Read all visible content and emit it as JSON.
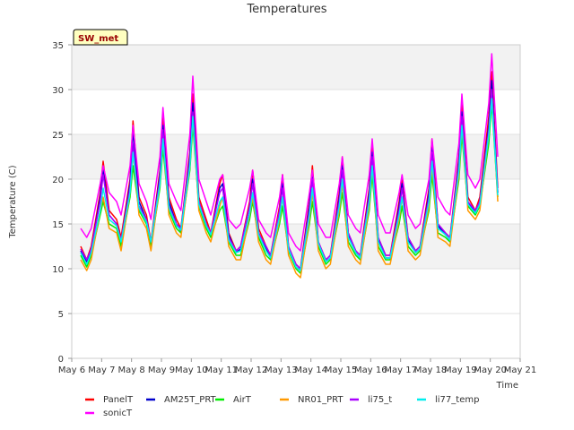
{
  "chart_data": {
    "type": "line",
    "title": "Temperatures",
    "xlabel": "Time",
    "ylabel": "Temperature (C)",
    "site_label": "SW_met",
    "xlim": [
      6,
      21
    ],
    "ylim": [
      0,
      35
    ],
    "x_ticks": [
      {
        "value": 6,
        "label": "May 6"
      },
      {
        "value": 7,
        "label": "May 7"
      },
      {
        "value": 8,
        "label": "May 8"
      },
      {
        "value": 9,
        "label": "May 9"
      },
      {
        "value": 10,
        "label": "May 10"
      },
      {
        "value": 11,
        "label": "May 11"
      },
      {
        "value": 12,
        "label": "May 12"
      },
      {
        "value": 13,
        "label": "May 13"
      },
      {
        "value": 14,
        "label": "May 14"
      },
      {
        "value": 15,
        "label": "May 15"
      },
      {
        "value": 16,
        "label": "May 16"
      },
      {
        "value": 17,
        "label": "May 17"
      },
      {
        "value": 18,
        "label": "May 18"
      },
      {
        "value": 19,
        "label": "May 19"
      },
      {
        "value": 20,
        "label": "May 20"
      },
      {
        "value": 21,
        "label": "May 21"
      }
    ],
    "y_ticks": [
      0,
      5,
      10,
      15,
      20,
      25,
      30,
      35
    ],
    "grid": true,
    "legend_position": "bottom",
    "series": [
      {
        "name": "PanelT",
        "color": "#ff0000",
        "x": [
          6.3,
          6.5,
          6.65,
          6.95,
          7.05,
          7.25,
          7.5,
          7.65,
          7.95,
          8.05,
          8.25,
          8.5,
          8.65,
          8.95,
          9.05,
          9.25,
          9.5,
          9.65,
          9.95,
          10.05,
          10.25,
          10.5,
          10.65,
          10.95,
          11.05,
          11.25,
          11.5,
          11.65,
          11.95,
          12.05,
          12.25,
          12.5,
          12.65,
          12.95,
          13.05,
          13.25,
          13.5,
          13.65,
          13.95,
          14.05,
          14.25,
          14.5,
          14.65,
          14.95,
          15.05,
          15.25,
          15.5,
          15.65,
          15.95,
          16.05,
          16.25,
          16.5,
          16.65,
          16.95,
          17.05,
          17.25,
          17.5,
          17.65,
          17.95,
          18.05,
          18.25,
          18.5,
          18.65,
          18.95,
          19.05,
          19.25,
          19.5,
          19.65,
          19.95,
          20.05,
          20.25
        ],
        "y": [
          12.5,
          11.0,
          12.5,
          18.5,
          22.0,
          16.5,
          15.5,
          13.5,
          20.0,
          26.5,
          18.0,
          16.0,
          13.0,
          21.0,
          27.0,
          18.0,
          15.5,
          14.5,
          23.0,
          29.5,
          18.0,
          15.5,
          14.0,
          19.5,
          20.5,
          14.0,
          12.0,
          12.5,
          17.5,
          21.0,
          14.5,
          12.5,
          11.5,
          17.0,
          20.5,
          12.5,
          10.5,
          10.0,
          17.5,
          21.5,
          13.0,
          11.0,
          11.5,
          18.5,
          22.5,
          14.0,
          12.0,
          11.5,
          19.0,
          24.0,
          13.5,
          11.5,
          11.5,
          17.5,
          20.0,
          13.5,
          12.0,
          12.5,
          19.0,
          24.5,
          15.0,
          14.0,
          13.5,
          22.5,
          28.5,
          18.0,
          16.5,
          18.0,
          27.0,
          32.0,
          19.0
        ]
      },
      {
        "name": "AM25T_PRT",
        "color": "#0000cc",
        "x": [
          6.3,
          6.5,
          6.65,
          6.95,
          7.05,
          7.25,
          7.5,
          7.65,
          7.95,
          8.05,
          8.25,
          8.5,
          8.65,
          8.95,
          9.05,
          9.25,
          9.5,
          9.65,
          9.95,
          10.05,
          10.25,
          10.5,
          10.65,
          10.95,
          11.05,
          11.25,
          11.5,
          11.65,
          11.95,
          12.05,
          12.25,
          12.5,
          12.65,
          12.95,
          13.05,
          13.25,
          13.5,
          13.65,
          13.95,
          14.05,
          14.25,
          14.5,
          14.65,
          14.95,
          15.05,
          15.25,
          15.5,
          15.65,
          15.95,
          16.05,
          16.25,
          16.5,
          16.65,
          16.95,
          17.05,
          17.25,
          17.5,
          17.65,
          17.95,
          18.05,
          18.25,
          18.5,
          18.65,
          18.95,
          19.05,
          19.25,
          19.5,
          19.65,
          19.95,
          20.05,
          20.25
        ],
        "y": [
          12.0,
          10.8,
          12.0,
          18.0,
          21.0,
          16.0,
          15.0,
          13.0,
          19.5,
          25.5,
          17.5,
          15.5,
          12.8,
          20.5,
          26.0,
          17.5,
          15.0,
          14.2,
          22.5,
          28.5,
          17.5,
          15.0,
          13.8,
          19.0,
          19.5,
          13.8,
          11.8,
          12.2,
          17.0,
          20.0,
          14.0,
          12.2,
          11.2,
          16.5,
          19.5,
          12.2,
          10.2,
          9.8,
          17.0,
          20.5,
          12.8,
          10.8,
          11.2,
          18.0,
          21.5,
          13.8,
          11.8,
          11.2,
          18.5,
          23.0,
          13.2,
          11.2,
          11.2,
          17.0,
          19.5,
          13.2,
          11.8,
          12.2,
          18.5,
          23.5,
          14.8,
          13.8,
          13.2,
          22.0,
          27.5,
          17.5,
          16.2,
          17.5,
          26.0,
          31.0,
          18.5
        ]
      },
      {
        "name": "AirT",
        "color": "#00ee00",
        "x": [
          6.3,
          6.5,
          6.65,
          6.95,
          7.05,
          7.25,
          7.5,
          7.65,
          7.95,
          8.05,
          8.25,
          8.5,
          8.65,
          8.95,
          9.05,
          9.25,
          9.5,
          9.65,
          9.95,
          10.05,
          10.25,
          10.5,
          10.65,
          10.95,
          11.05,
          11.25,
          11.5,
          11.65,
          11.95,
          12.05,
          12.25,
          12.5,
          12.65,
          12.95,
          13.05,
          13.25,
          13.5,
          13.65,
          13.95,
          14.05,
          14.25,
          14.5,
          14.65,
          14.95,
          15.05,
          15.25,
          15.5,
          15.65,
          15.95,
          16.05,
          16.25,
          16.5,
          16.65,
          16.95,
          17.05,
          17.25,
          17.5,
          17.65,
          17.95,
          18.05,
          18.25,
          18.5,
          18.65,
          18.95,
          19.05,
          19.25,
          19.5,
          19.65,
          19.95,
          20.05,
          20.25
        ],
        "y": [
          11.5,
          10.2,
          11.5,
          16.0,
          17.5,
          15.0,
          14.5,
          12.5,
          18.0,
          21.5,
          16.5,
          15.0,
          12.5,
          19.0,
          23.5,
          16.5,
          14.5,
          14.0,
          21.0,
          26.0,
          17.0,
          14.5,
          13.5,
          16.5,
          17.0,
          13.0,
          11.5,
          11.5,
          15.5,
          17.5,
          13.5,
          11.5,
          11.0,
          15.0,
          17.0,
          12.0,
          10.0,
          9.5,
          15.0,
          17.5,
          12.5,
          10.5,
          11.0,
          16.0,
          18.5,
          13.0,
          11.5,
          11.0,
          16.5,
          20.5,
          12.5,
          11.0,
          11.0,
          15.0,
          17.0,
          12.5,
          11.5,
          12.0,
          16.5,
          20.5,
          14.0,
          13.5,
          13.0,
          20.0,
          25.0,
          17.0,
          16.0,
          17.0,
          24.0,
          28.5,
          18.0
        ]
      },
      {
        "name": "NR01_PRT",
        "color": "#ff9900",
        "x": [
          6.3,
          6.5,
          6.65,
          6.95,
          7.05,
          7.25,
          7.5,
          7.65,
          7.95,
          8.05,
          8.25,
          8.5,
          8.65,
          8.95,
          9.05,
          9.25,
          9.5,
          9.65,
          9.95,
          10.05,
          10.25,
          10.5,
          10.65,
          10.95,
          11.05,
          11.25,
          11.5,
          11.65,
          11.95,
          12.05,
          12.25,
          12.5,
          12.65,
          12.95,
          13.05,
          13.25,
          13.5,
          13.65,
          13.95,
          14.05,
          14.25,
          14.5,
          14.65,
          14.95,
          15.05,
          15.25,
          15.5,
          15.65,
          15.95,
          16.05,
          16.25,
          16.5,
          16.65,
          16.95,
          17.05,
          17.25,
          17.5,
          17.65,
          17.95,
          18.05,
          18.25,
          18.5,
          18.65,
          18.95,
          19.05,
          19.25,
          19.5,
          19.65,
          19.95,
          20.05,
          20.25
        ],
        "y": [
          11.0,
          9.8,
          11.0,
          16.5,
          18.0,
          14.5,
          14.0,
          12.0,
          18.5,
          23.0,
          16.0,
          14.5,
          12.0,
          19.5,
          24.5,
          16.0,
          14.0,
          13.5,
          21.5,
          27.0,
          16.5,
          14.0,
          13.0,
          17.0,
          18.0,
          12.5,
          11.0,
          11.0,
          16.0,
          18.0,
          13.0,
          11.0,
          10.5,
          15.5,
          18.0,
          11.5,
          9.5,
          9.0,
          15.5,
          18.5,
          12.0,
          10.0,
          10.5,
          16.5,
          19.5,
          12.5,
          11.0,
          10.5,
          17.0,
          21.5,
          12.0,
          10.5,
          10.5,
          15.5,
          18.0,
          12.0,
          11.0,
          11.5,
          17.0,
          21.5,
          13.5,
          13.0,
          12.5,
          20.5,
          26.0,
          16.5,
          15.5,
          16.5,
          25.0,
          30.0,
          17.5
        ]
      },
      {
        "name": "li75_t",
        "color": "#aa00ff",
        "x": [
          6.3,
          6.5,
          6.65,
          6.95,
          7.05,
          7.25,
          7.5,
          7.65,
          7.95,
          8.05,
          8.25,
          8.5,
          8.65,
          8.95,
          9.05,
          9.25,
          9.5,
          9.65,
          9.95,
          10.05,
          10.25,
          10.5,
          10.65,
          10.95,
          11.05,
          11.25,
          11.5,
          11.65,
          11.95,
          12.05,
          12.25,
          12.5,
          12.65,
          12.95,
          13.05,
          13.25,
          13.5,
          13.65,
          13.95,
          14.05,
          14.25,
          14.5,
          14.65,
          14.95,
          15.05,
          15.25,
          15.5,
          15.65,
          15.95,
          16.05,
          16.25,
          16.5,
          16.65,
          16.95,
          17.05,
          17.25,
          17.5,
          17.65,
          17.95,
          18.05,
          18.25,
          18.5,
          18.65,
          18.95,
          19.05,
          19.25,
          19.5,
          19.65,
          19.95,
          20.05,
          20.25
        ],
        "y": [
          12.2,
          11.0,
          12.2,
          17.5,
          20.5,
          16.0,
          15.0,
          13.2,
          19.0,
          24.0,
          17.0,
          15.5,
          13.0,
          20.0,
          25.5,
          17.0,
          15.0,
          14.5,
          22.0,
          27.5,
          17.5,
          15.0,
          14.0,
          18.5,
          19.0,
          13.5,
          12.0,
          12.5,
          17.0,
          19.5,
          14.0,
          12.5,
          11.5,
          16.5,
          19.0,
          12.5,
          10.5,
          10.0,
          16.5,
          20.0,
          13.0,
          11.0,
          11.5,
          17.5,
          21.0,
          14.0,
          12.0,
          11.5,
          18.0,
          22.5,
          13.5,
          11.5,
          11.5,
          16.5,
          19.0,
          13.5,
          12.0,
          12.5,
          18.0,
          23.0,
          15.0,
          14.0,
          13.5,
          21.5,
          27.0,
          17.5,
          16.5,
          17.5,
          25.5,
          30.0,
          18.5
        ]
      },
      {
        "name": "li77_temp",
        "color": "#00eeee",
        "x": [
          6.3,
          6.5,
          6.65,
          6.95,
          7.05,
          7.25,
          7.5,
          7.65,
          7.95,
          8.05,
          8.25,
          8.5,
          8.65,
          8.95,
          9.05,
          9.25,
          9.5,
          9.65,
          9.95,
          10.05,
          10.25,
          10.5,
          10.65,
          10.95,
          11.05,
          11.25,
          11.5,
          11.65,
          11.95,
          12.05,
          12.25,
          12.5,
          12.65,
          12.95,
          13.05,
          13.25,
          13.5,
          13.65,
          13.95,
          14.05,
          14.25,
          14.5,
          14.65,
          14.95,
          15.05,
          15.25,
          15.5,
          15.65,
          15.95,
          16.05,
          16.25,
          16.5,
          16.65,
          16.95,
          17.05,
          17.25,
          17.5,
          17.65,
          17.95,
          18.05,
          18.25,
          18.5,
          18.65,
          18.95,
          19.05,
          19.25,
          19.5,
          19.65,
          19.95,
          20.05,
          20.25
        ],
        "y": [
          11.8,
          10.5,
          11.8,
          16.5,
          19.0,
          15.5,
          14.8,
          13.0,
          18.5,
          23.0,
          16.8,
          15.2,
          13.0,
          19.5,
          24.5,
          16.8,
          14.8,
          14.3,
          21.5,
          27.0,
          17.2,
          14.8,
          13.8,
          17.5,
          18.0,
          13.2,
          11.8,
          12.0,
          16.2,
          18.5,
          13.8,
          12.0,
          11.2,
          15.8,
          18.0,
          12.2,
          10.2,
          9.8,
          16.0,
          19.0,
          12.8,
          10.8,
          11.2,
          17.0,
          20.0,
          13.5,
          11.8,
          11.2,
          17.5,
          21.5,
          13.0,
          11.2,
          11.2,
          16.0,
          18.0,
          13.0,
          11.8,
          12.2,
          17.5,
          22.0,
          14.5,
          13.8,
          13.2,
          21.0,
          26.0,
          17.2,
          16.2,
          17.2,
          25.0,
          29.0,
          18.2
        ]
      },
      {
        "name": "sonicT",
        "color": "#ff00ff",
        "x": [
          6.3,
          6.5,
          6.65,
          6.95,
          7.05,
          7.25,
          7.5,
          7.65,
          7.95,
          8.05,
          8.25,
          8.5,
          8.65,
          8.95,
          9.05,
          9.25,
          9.5,
          9.65,
          9.95,
          10.05,
          10.25,
          10.5,
          10.65,
          10.95,
          11.05,
          11.25,
          11.5,
          11.65,
          11.95,
          12.05,
          12.25,
          12.5,
          12.65,
          12.95,
          13.05,
          13.25,
          13.5,
          13.65,
          13.95,
          14.05,
          14.25,
          14.5,
          14.65,
          14.95,
          15.05,
          15.25,
          15.5,
          15.65,
          15.95,
          16.05,
          16.25,
          16.5,
          16.65,
          16.95,
          17.05,
          17.25,
          17.5,
          17.65,
          17.95,
          18.05,
          18.25,
          18.5,
          18.65,
          18.95,
          19.05,
          19.25,
          19.5,
          19.65,
          19.95,
          20.05,
          20.25
        ],
        "y": [
          14.5,
          13.5,
          14.5,
          19.5,
          21.5,
          18.5,
          17.5,
          16.0,
          21.5,
          26.0,
          19.5,
          17.5,
          15.5,
          22.5,
          28.0,
          19.5,
          17.5,
          16.5,
          25.0,
          31.5,
          20.0,
          17.5,
          16.0,
          20.0,
          20.5,
          15.5,
          14.5,
          15.0,
          19.0,
          21.0,
          15.5,
          14.0,
          13.5,
          18.0,
          20.5,
          14.0,
          12.5,
          12.0,
          18.5,
          21.0,
          15.0,
          13.5,
          13.5,
          19.5,
          22.5,
          16.0,
          14.5,
          14.0,
          20.5,
          24.5,
          16.0,
          14.0,
          14.0,
          18.5,
          20.5,
          16.0,
          14.5,
          15.0,
          20.0,
          24.5,
          18.0,
          16.5,
          16.0,
          24.0,
          29.5,
          20.5,
          19.0,
          20.0,
          28.5,
          34.0,
          22.5
        ]
      }
    ]
  }
}
